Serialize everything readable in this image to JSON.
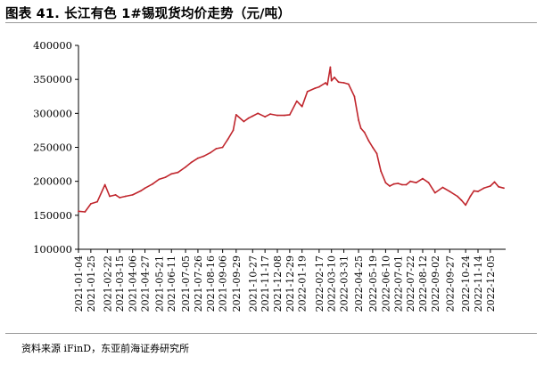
{
  "title": "图表 41.  长江有色 1#锡现货均价走势（元/吨）",
  "source": "资料来源 iFinD，东亚前海证券研究所",
  "chart_data": {
    "type": "line",
    "title": "图表 41.  长江有色 1#锡现货均价走势（元/吨）",
    "xlabel": "",
    "ylabel": "",
    "ylim": [
      100000,
      400000
    ],
    "yticks": [
      100000,
      150000,
      200000,
      250000,
      300000,
      350000,
      400000
    ],
    "ytick_labels": [
      "100000",
      "150000",
      "200000",
      "250000",
      "300000",
      "350000",
      "400000"
    ],
    "xlim": [
      "2021-01-04",
      "2022-12-31"
    ],
    "xtick_labels": [
      "2021-01-04",
      "2021-01-25",
      "2021-02-22",
      "2021-03-15",
      "2021-04-06",
      "2021-04-27",
      "2021-05-21",
      "2021-06-11",
      "2021-07-05",
      "2021-07-26",
      "2021-08-16",
      "2021-09-06",
      "2021-09-29",
      "2021-10-27",
      "2021-11-17",
      "2021-12-08",
      "2021-12-29",
      "2022-01-19",
      "2022-02-17",
      "2022-03-10",
      "2022-03-31",
      "2022-04-25",
      "2022-05-19",
      "2022-06-10",
      "2022-07-01",
      "2022-07-22",
      "2022-08-12",
      "2022-09-02",
      "2022-09-27",
      "2022-10-24",
      "2022-11-14",
      "2022-12-05"
    ],
    "grid": false,
    "legend": "none",
    "series_color": "#c0262d",
    "series": [
      {
        "x": [
          "2021-01-04",
          "2021-01-15",
          "2021-01-25",
          "2021-02-05",
          "2021-02-18",
          "2021-02-26",
          "2021-03-08",
          "2021-03-15",
          "2021-03-25",
          "2021-04-06",
          "2021-04-20",
          "2021-04-27",
          "2021-05-10",
          "2021-05-21",
          "2021-06-01",
          "2021-06-11",
          "2021-06-22",
          "2021-07-05",
          "2021-07-15",
          "2021-07-26",
          "2021-08-05",
          "2021-08-16",
          "2021-08-26",
          "2021-09-06",
          "2021-09-15",
          "2021-09-24",
          "2021-09-29",
          "2021-10-12",
          "2021-10-20",
          "2021-10-27",
          "2021-11-05",
          "2021-11-17",
          "2021-11-26",
          "2021-12-08",
          "2021-12-20",
          "2021-12-29",
          "2022-01-10",
          "2022-01-19",
          "2022-01-28",
          "2022-02-10",
          "2022-02-17",
          "2022-02-28",
          "2022-03-03",
          "2022-03-08",
          "2022-03-10",
          "2022-03-15",
          "2022-03-22",
          "2022-03-31",
          "2022-04-08",
          "2022-04-18",
          "2022-04-25",
          "2022-04-29",
          "2022-05-05",
          "2022-05-12",
          "2022-05-19",
          "2022-05-26",
          "2022-06-02",
          "2022-06-10",
          "2022-06-17",
          "2022-06-24",
          "2022-07-01",
          "2022-07-08",
          "2022-07-15",
          "2022-07-22",
          "2022-08-01",
          "2022-08-12",
          "2022-08-22",
          "2022-09-02",
          "2022-09-15",
          "2022-09-27",
          "2022-10-10",
          "2022-10-17",
          "2022-10-24",
          "2022-11-01",
          "2022-11-07",
          "2022-11-14",
          "2022-11-24",
          "2022-12-05",
          "2022-12-12",
          "2022-12-19",
          "2022-12-28"
        ],
        "y": [
          156000,
          155000,
          167000,
          170000,
          195000,
          178000,
          180000,
          176000,
          178000,
          180000,
          186000,
          190000,
          196000,
          203000,
          206000,
          211000,
          213000,
          221000,
          228000,
          234000,
          237000,
          242000,
          248000,
          250000,
          262000,
          275000,
          298000,
          288000,
          293000,
          296000,
          300000,
          295000,
          299000,
          297000,
          297000,
          298000,
          318000,
          310000,
          332000,
          337000,
          339000,
          345000,
          342000,
          368000,
          348000,
          353000,
          346000,
          345000,
          343000,
          325000,
          290000,
          278000,
          272000,
          260000,
          250000,
          241000,
          215000,
          198000,
          193000,
          196000,
          197000,
          195000,
          195000,
          200000,
          198000,
          204000,
          198000,
          183000,
          191000,
          185000,
          178000,
          172000,
          165000,
          178000,
          186000,
          185000,
          190000,
          193000,
          199000,
          192000,
          190000
        ]
      }
    ]
  }
}
